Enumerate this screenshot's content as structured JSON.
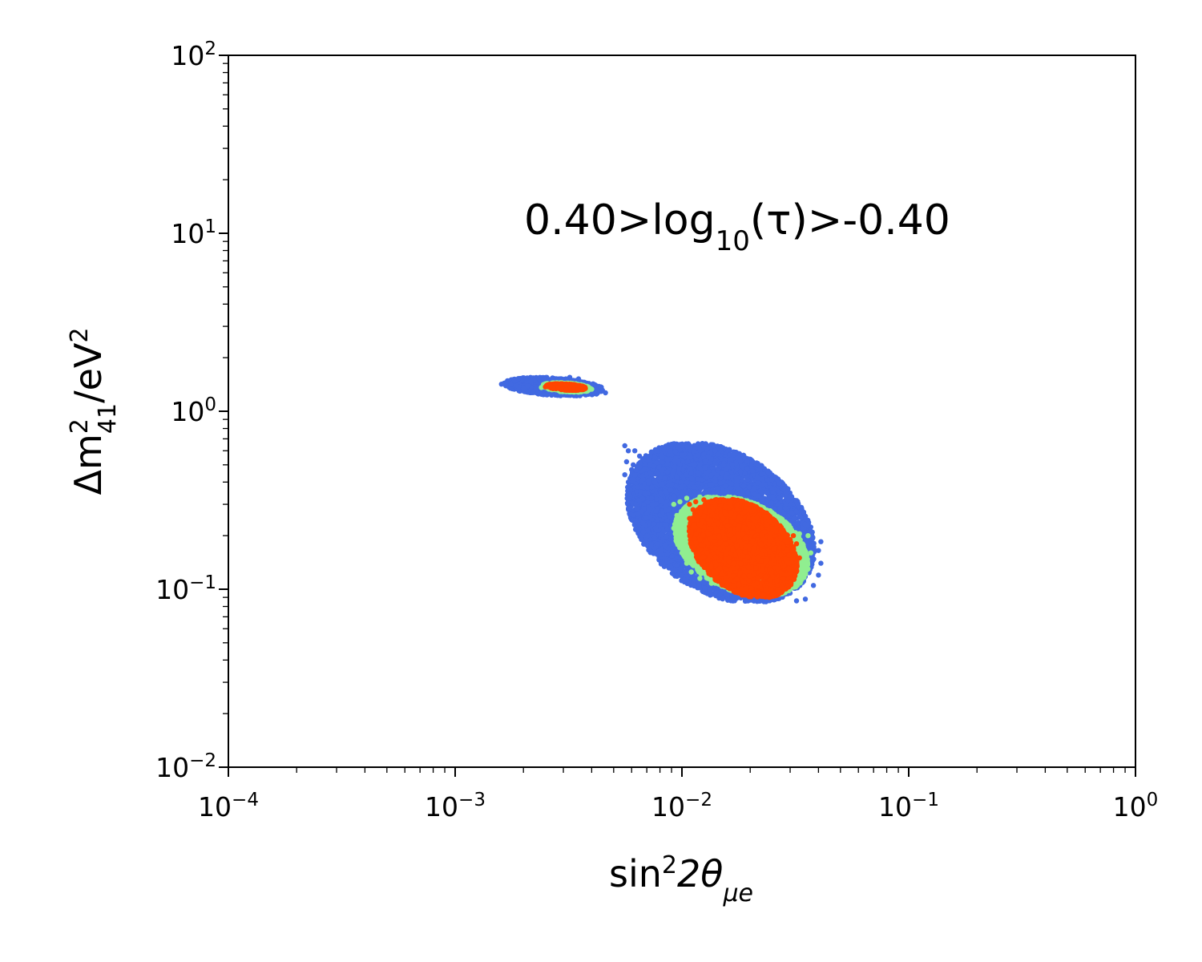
{
  "chart_data": {
    "type": "scatter",
    "title": "",
    "annotation": {
      "prefix": "0.40>log",
      "sub": "10",
      "suffix": "(τ)>-0.40"
    },
    "xlabel": {
      "base": "sin",
      "sup": "2",
      "mid": "2θ",
      "sub": "μe"
    },
    "ylabel": {
      "base": "Δm",
      "sup": "2",
      "sub": "41",
      "suffix": "/eV",
      "sup2": "2"
    },
    "x_scale": "log",
    "y_scale": "log",
    "xlim": [
      0.0001,
      1
    ],
    "ylim": [
      0.01,
      100
    ],
    "x_ticks": [
      {
        "value": 0.0001,
        "base": "10",
        "exp": "−4"
      },
      {
        "value": 0.001,
        "base": "10",
        "exp": "−3"
      },
      {
        "value": 0.01,
        "base": "10",
        "exp": "−2"
      },
      {
        "value": 0.1,
        "base": "10",
        "exp": "−1"
      },
      {
        "value": 1,
        "base": "10",
        "exp": "0"
      }
    ],
    "y_ticks": [
      {
        "value": 0.01,
        "base": "10",
        "exp": "−2"
      },
      {
        "value": 0.1,
        "base": "10",
        "exp": "−1"
      },
      {
        "value": 1,
        "base": "10",
        "exp": "0"
      },
      {
        "value": 10,
        "base": "10",
        "exp": "1"
      },
      {
        "value": 100,
        "base": "10",
        "exp": "2"
      }
    ],
    "grid": false,
    "legend": "none",
    "series": [
      {
        "color": "#4169e1",
        "regions": [
          {
            "x_range": [
              0.0016,
              0.0046
            ],
            "y_range": [
              1.22,
              1.55
            ]
          },
          {
            "x_range": [
              0.0055,
              0.04
            ],
            "y_range": [
              0.085,
              0.66
            ]
          }
        ],
        "points": [
          [
            0.0016,
            1.42
          ],
          [
            0.0018,
            1.45
          ],
          [
            0.002,
            1.38
          ],
          [
            0.0022,
            1.48
          ],
          [
            0.0024,
            1.3
          ],
          [
            0.0026,
            1.5
          ],
          [
            0.0028,
            1.35
          ],
          [
            0.003,
            1.42
          ],
          [
            0.0032,
            1.55
          ],
          [
            0.0034,
            1.28
          ],
          [
            0.0036,
            1.46
          ],
          [
            0.0038,
            1.33
          ],
          [
            0.004,
            1.4
          ],
          [
            0.0042,
            1.25
          ],
          [
            0.0044,
            1.3
          ],
          [
            0.0046,
            1.27
          ],
          [
            0.0027,
            1.26
          ],
          [
            0.0031,
            1.24
          ],
          [
            0.0035,
            1.52
          ],
          [
            0.0025,
            1.44
          ],
          [
            0.0056,
            0.64
          ],
          [
            0.0058,
            0.6
          ],
          [
            0.0057,
            0.52
          ],
          [
            0.006,
            0.47
          ],
          [
            0.0056,
            0.44
          ],
          [
            0.0058,
            0.4
          ],
          [
            0.006,
            0.35
          ],
          [
            0.0059,
            0.31
          ],
          [
            0.0062,
            0.28
          ],
          [
            0.0066,
            0.26
          ],
          [
            0.007,
            0.23
          ],
          [
            0.0075,
            0.21
          ],
          [
            0.008,
            0.19
          ],
          [
            0.0085,
            0.17
          ],
          [
            0.009,
            0.15
          ],
          [
            0.0095,
            0.135
          ],
          [
            0.01,
            0.125
          ],
          [
            0.0105,
            0.118
          ],
          [
            0.0115,
            0.112
          ],
          [
            0.0125,
            0.108
          ],
          [
            0.014,
            0.105
          ],
          [
            0.016,
            0.102
          ],
          [
            0.018,
            0.096
          ],
          [
            0.02,
            0.093
          ],
          [
            0.023,
            0.094
          ],
          [
            0.026,
            0.09
          ],
          [
            0.03,
            0.095
          ],
          [
            0.032,
            0.086
          ],
          [
            0.035,
            0.088
          ],
          [
            0.038,
            0.105
          ],
          [
            0.04,
            0.12
          ],
          [
            0.041,
            0.14
          ],
          [
            0.04,
            0.165
          ],
          [
            0.041,
            0.185
          ],
          [
            0.035,
            0.2
          ],
          [
            0.032,
            0.21
          ],
          [
            0.028,
            0.225
          ],
          [
            0.025,
            0.24
          ],
          [
            0.022,
            0.27
          ],
          [
            0.019,
            0.3
          ],
          [
            0.017,
            0.32
          ],
          [
            0.015,
            0.345
          ],
          [
            0.013,
            0.37
          ],
          [
            0.011,
            0.4
          ],
          [
            0.01,
            0.43
          ],
          [
            0.009,
            0.45
          ],
          [
            0.008,
            0.48
          ],
          [
            0.007,
            0.53
          ],
          [
            0.0065,
            0.56
          ],
          [
            0.0062,
            0.6
          ],
          [
            0.0065,
            0.42
          ],
          [
            0.007,
            0.38
          ],
          [
            0.0075,
            0.34
          ],
          [
            0.008,
            0.33
          ],
          [
            0.0072,
            0.45
          ],
          [
            0.0068,
            0.33
          ],
          [
            0.0085,
            0.28
          ],
          [
            0.009,
            0.26
          ],
          [
            0.0078,
            0.29
          ],
          [
            0.0095,
            0.22
          ],
          [
            0.0088,
            0.2
          ],
          [
            0.0082,
            0.24
          ],
          [
            0.0098,
            0.17
          ],
          [
            0.0105,
            0.15
          ],
          [
            0.011,
            0.14
          ],
          [
            0.012,
            0.13
          ],
          [
            0.0064,
            0.36
          ],
          [
            0.0061,
            0.5
          ],
          [
            0.0066,
            0.3
          ],
          [
            0.0074,
            0.27
          ],
          [
            0.0079,
            0.39
          ],
          [
            0.0084,
            0.36
          ],
          [
            0.0092,
            0.31
          ],
          [
            0.0099,
            0.33
          ],
          [
            0.0108,
            0.32
          ],
          [
            0.0118,
            0.3
          ],
          [
            0.013,
            0.29
          ],
          [
            0.0145,
            0.31
          ],
          [
            0.016,
            0.29
          ],
          [
            0.02,
            0.26
          ],
          [
            0.026,
            0.22
          ],
          [
            0.031,
            0.19
          ],
          [
            0.036,
            0.14
          ],
          [
            0.033,
            0.11
          ],
          [
            0.029,
            0.1
          ],
          [
            0.024,
            0.1
          ],
          [
            0.015,
            0.11
          ],
          [
            0.013,
            0.12
          ],
          [
            0.0105,
            0.2
          ],
          [
            0.01,
            0.24
          ]
        ]
      },
      {
        "color": "#90ee90",
        "regions": [
          {
            "x_range": [
              0.0024,
              0.004
            ],
            "y_range": [
              1.28,
              1.45
            ]
          },
          {
            "x_range": [
              0.009,
              0.037
            ],
            "y_range": [
              0.092,
              0.33
            ]
          }
        ],
        "points": [
          [
            0.0024,
            1.36
          ],
          [
            0.0026,
            1.4
          ],
          [
            0.0028,
            1.32
          ],
          [
            0.003,
            1.43
          ],
          [
            0.0032,
            1.3
          ],
          [
            0.0034,
            1.4
          ],
          [
            0.0036,
            1.34
          ],
          [
            0.0038,
            1.38
          ],
          [
            0.004,
            1.33
          ],
          [
            0.0029,
            1.29
          ],
          [
            0.0092,
            0.3
          ],
          [
            0.0095,
            0.26
          ],
          [
            0.0092,
            0.22
          ],
          [
            0.0095,
            0.19
          ],
          [
            0.01,
            0.16
          ],
          [
            0.0105,
            0.14
          ],
          [
            0.011,
            0.125
          ],
          [
            0.012,
            0.115
          ],
          [
            0.0135,
            0.108
          ],
          [
            0.015,
            0.104
          ],
          [
            0.017,
            0.101
          ],
          [
            0.019,
            0.097
          ],
          [
            0.021,
            0.093
          ],
          [
            0.024,
            0.096
          ],
          [
            0.027,
            0.098
          ],
          [
            0.03,
            0.1
          ],
          [
            0.033,
            0.11
          ],
          [
            0.036,
            0.13
          ],
          [
            0.037,
            0.16
          ],
          [
            0.036,
            0.2
          ],
          [
            0.033,
            0.205
          ],
          [
            0.03,
            0.215
          ],
          [
            0.027,
            0.23
          ],
          [
            0.024,
            0.25
          ],
          [
            0.022,
            0.27
          ],
          [
            0.02,
            0.285
          ],
          [
            0.018,
            0.3
          ],
          [
            0.016,
            0.315
          ],
          [
            0.014,
            0.325
          ],
          [
            0.012,
            0.33
          ],
          [
            0.0105,
            0.325
          ],
          [
            0.0098,
            0.31
          ],
          [
            0.034,
            0.18
          ],
          [
            0.035,
            0.15
          ],
          [
            0.032,
            0.125
          ],
          [
            0.029,
            0.11
          ],
          [
            0.011,
            0.2
          ],
          [
            0.0103,
            0.24
          ],
          [
            0.025,
            0.105
          ],
          [
            0.028,
            0.195
          ]
        ]
      },
      {
        "color": "#ff4500",
        "regions": [
          {
            "x_range": [
              0.0025,
              0.0038
            ],
            "y_range": [
              1.31,
              1.43
            ]
          },
          {
            "x_range": [
              0.0105,
              0.033
            ],
            "y_range": [
              0.09,
              0.32
            ]
          }
        ],
        "points": [
          [
            0.0025,
            1.37
          ],
          [
            0.0027,
            1.4
          ],
          [
            0.0029,
            1.34
          ],
          [
            0.0031,
            1.39
          ],
          [
            0.0033,
            1.35
          ],
          [
            0.0035,
            1.38
          ],
          [
            0.0037,
            1.33
          ],
          [
            0.0028,
            1.42
          ],
          [
            0.0108,
            0.3
          ],
          [
            0.0112,
            0.28
          ],
          [
            0.0108,
            0.25
          ],
          [
            0.011,
            0.22
          ],
          [
            0.0113,
            0.19
          ],
          [
            0.0118,
            0.16
          ],
          [
            0.0125,
            0.14
          ],
          [
            0.0135,
            0.125
          ],
          [
            0.015,
            0.115
          ],
          [
            0.0165,
            0.108
          ],
          [
            0.0185,
            0.104
          ],
          [
            0.0205,
            0.1
          ],
          [
            0.023,
            0.093
          ],
          [
            0.025,
            0.1
          ],
          [
            0.028,
            0.105
          ],
          [
            0.03,
            0.112
          ],
          [
            0.032,
            0.128
          ],
          [
            0.033,
            0.15
          ],
          [
            0.032,
            0.18
          ],
          [
            0.03,
            0.19
          ],
          [
            0.028,
            0.205
          ],
          [
            0.026,
            0.225
          ],
          [
            0.024,
            0.245
          ],
          [
            0.022,
            0.26
          ],
          [
            0.02,
            0.275
          ],
          [
            0.018,
            0.29
          ],
          [
            0.016,
            0.305
          ],
          [
            0.014,
            0.315
          ],
          [
            0.0125,
            0.318
          ],
          [
            0.0115,
            0.31
          ],
          [
            0.031,
            0.2
          ],
          [
            0.029,
            0.115
          ],
          [
            0.027,
            0.11
          ],
          [
            0.024,
            0.12
          ],
          [
            0.014,
            0.2
          ],
          [
            0.016,
            0.16
          ],
          [
            0.018,
            0.18
          ],
          [
            0.02,
            0.15
          ],
          [
            0.022,
            0.2
          ],
          [
            0.013,
            0.25
          ],
          [
            0.015,
            0.26
          ],
          [
            0.017,
            0.23
          ]
        ]
      }
    ]
  }
}
